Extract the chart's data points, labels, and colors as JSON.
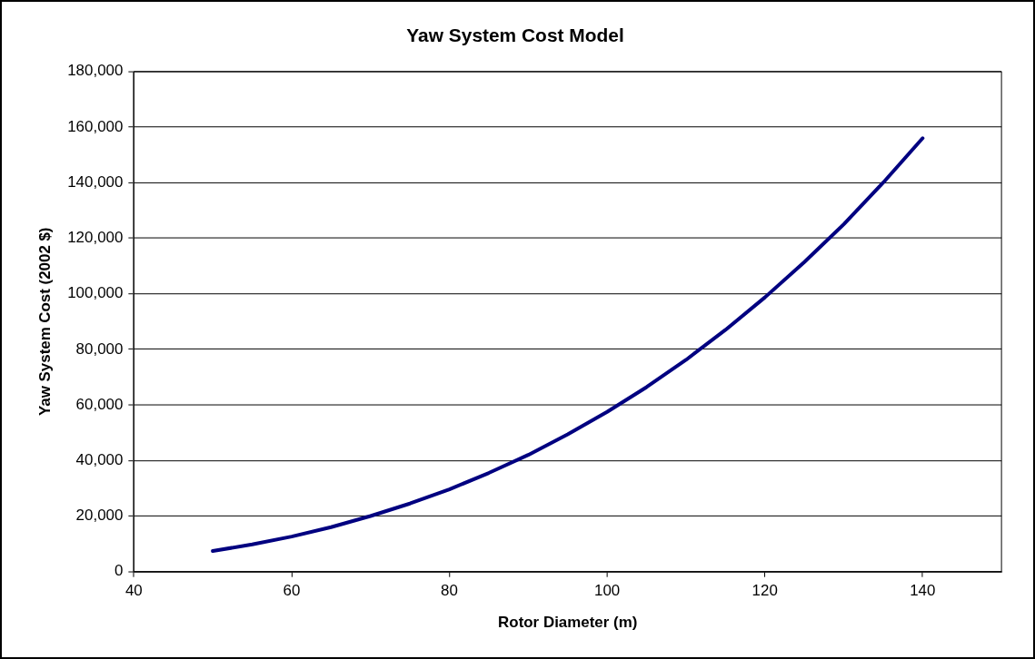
{
  "chart_data": {
    "type": "line",
    "title": "Yaw System Cost Model",
    "xlabel": "Rotor Diameter (m)",
    "ylabel": "Yaw System Cost (2002 $)",
    "x": [
      50,
      55,
      60,
      65,
      70,
      75,
      80,
      85,
      90,
      95,
      100,
      105,
      110,
      115,
      120,
      125,
      130,
      135,
      140
    ],
    "series": [
      {
        "color": "#000080",
        "values": [
          7400,
          9800,
          12600,
          16000,
          20000,
          24500,
          29600,
          35500,
          42000,
          49400,
          57500,
          66400,
          76200,
          87000,
          98700,
          111400,
          125000,
          140000,
          156000
        ]
      }
    ],
    "xlim": [
      40,
      150
    ],
    "xticks": [
      40,
      60,
      80,
      100,
      120,
      140
    ],
    "ylim": [
      0,
      180000
    ],
    "yticks": [
      0,
      {
        "value": 20000,
        "label": "20,000"
      },
      {
        "value": 40000,
        "label": "40,000"
      },
      {
        "value": 60000,
        "label": "60,000"
      },
      {
        "value": 80000,
        "label": "80,000"
      },
      {
        "value": 100000,
        "label": "100,000"
      },
      {
        "value": 120000,
        "label": "120,000"
      },
      {
        "value": 140000,
        "label": "140,000"
      },
      {
        "value": 160000,
        "label": "160,000"
      },
      {
        "value": 180000,
        "label": "180,000"
      }
    ],
    "grid": "y",
    "legend": false,
    "marker": "none",
    "line_style": "solid"
  }
}
